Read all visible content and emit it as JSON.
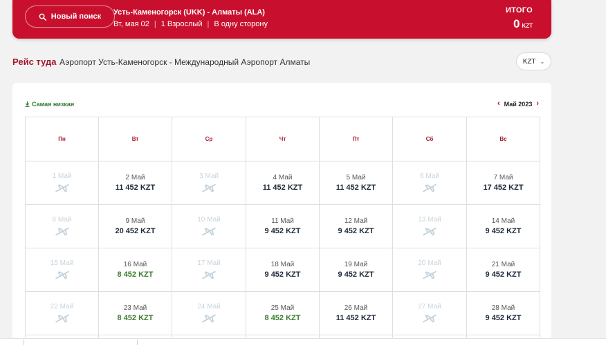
{
  "header": {
    "new_search_label": "Новый поиск",
    "route": "Усть-Каменогорск (UKK) - Алматы (ALA)",
    "date": "Вт, мая 02",
    "passengers": "1 Взрослый",
    "trip_type": "В одну сторону",
    "total_label": "ИТОГО",
    "total_value": "0",
    "total_currency": "KZT",
    "accent_color": "#c8102e"
  },
  "section": {
    "title": "Рейс туда",
    "route": "Аэропорт Усть-Каменогорск - Международный Аэропорт Алматы",
    "currency": "KZT"
  },
  "calendar": {
    "cheapest_label": "Самая низкая",
    "month_label": "Май 2023",
    "weekdays": [
      "Пн",
      "Вт",
      "Ср",
      "Чт",
      "Пт",
      "Сб",
      "Вс"
    ],
    "weeks": [
      [
        {
          "date": "1 Май",
          "available": false
        },
        {
          "date": "2 Май",
          "price": "11 452 KZT",
          "available": true
        },
        {
          "date": "3 Май",
          "available": false
        },
        {
          "date": "4 Май",
          "price": "11 452 KZT",
          "available": true
        },
        {
          "date": "5 Май",
          "price": "11 452 KZT",
          "available": true
        },
        {
          "date": "6 Май",
          "available": false
        },
        {
          "date": "7 Май",
          "price": "17 452 KZT",
          "available": true
        }
      ],
      [
        {
          "date": "8 Май",
          "available": false
        },
        {
          "date": "9 Май",
          "price": "20 452 KZT",
          "available": true
        },
        {
          "date": "10 Май",
          "available": false
        },
        {
          "date": "11 Май",
          "price": "9 452 KZT",
          "available": true
        },
        {
          "date": "12 Май",
          "price": "9 452 KZT",
          "available": true
        },
        {
          "date": "13 Май",
          "available": false
        },
        {
          "date": "14 Май",
          "price": "9 452 KZT",
          "available": true
        }
      ],
      [
        {
          "date": "15 Май",
          "available": false
        },
        {
          "date": "16 Май",
          "price": "8 452 KZT",
          "available": true,
          "lowest": true
        },
        {
          "date": "17 Май",
          "available": false
        },
        {
          "date": "18 Май",
          "price": "9 452 KZT",
          "available": true
        },
        {
          "date": "19 Май",
          "price": "9 452 KZT",
          "available": true
        },
        {
          "date": "20 Май",
          "available": false
        },
        {
          "date": "21 Май",
          "price": "9 452 KZT",
          "available": true
        }
      ],
      [
        {
          "date": "22 Май",
          "available": false
        },
        {
          "date": "23 Май",
          "price": "8 452 KZT",
          "available": true,
          "lowest": true
        },
        {
          "date": "24 Май",
          "available": false
        },
        {
          "date": "25 Май",
          "price": "8 452 KZT",
          "available": true,
          "lowest": true
        },
        {
          "date": "26 Май",
          "price": "11 452 KZT",
          "available": true
        },
        {
          "date": "27 Май",
          "available": false
        },
        {
          "date": "28 Май",
          "price": "9 452 KZT",
          "available": true
        }
      ]
    ],
    "lowest_color": "#3a7d2c",
    "unavailable_icon": "plane-icon"
  }
}
